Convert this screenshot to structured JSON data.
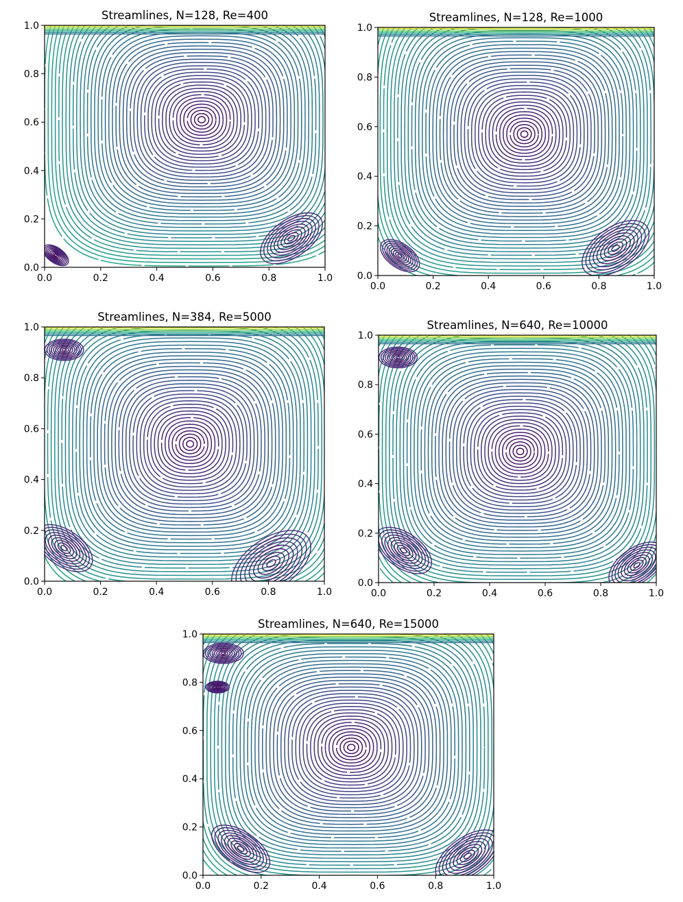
{
  "chart_data": [
    {
      "type": "streamplot",
      "title": "Streamlines, N=128, Re=400",
      "xlim": [
        0.0,
        1.0
      ],
      "ylim": [
        0.0,
        1.0
      ],
      "xticks": [
        "0.0",
        "0.2",
        "0.4",
        "0.6",
        "0.8",
        "1.0"
      ],
      "yticks": [
        "0.0",
        "0.2",
        "0.4",
        "0.6",
        "0.8",
        "1.0"
      ],
      "colormap": "viridis",
      "vortices": [
        {
          "role": "primary",
          "x": 0.56,
          "y": 0.61,
          "r": 0.5
        },
        {
          "role": "bottom-right",
          "x": 0.88,
          "y": 0.12,
          "r": 0.11
        },
        {
          "role": "bottom-left",
          "x": 0.04,
          "y": 0.05,
          "r": 0.045
        }
      ]
    },
    {
      "type": "streamplot",
      "title": "Streamlines, N=128, Re=1000",
      "xlim": [
        0.0,
        1.0
      ],
      "ylim": [
        0.0,
        1.0
      ],
      "xticks": [
        "0.0",
        "0.2",
        "0.4",
        "0.6",
        "0.8",
        "1.0"
      ],
      "yticks": [
        "0.0",
        "0.2",
        "0.4",
        "0.6",
        "0.8",
        "1.0"
      ],
      "colormap": "viridis",
      "vortices": [
        {
          "role": "primary",
          "x": 0.53,
          "y": 0.57,
          "r": 0.5
        },
        {
          "role": "bottom-right",
          "x": 0.86,
          "y": 0.11,
          "r": 0.12
        },
        {
          "role": "bottom-left",
          "x": 0.08,
          "y": 0.08,
          "r": 0.07
        }
      ]
    },
    {
      "type": "streamplot",
      "title": "Streamlines, N=384, Re=5000",
      "xlim": [
        0.0,
        1.0
      ],
      "ylim": [
        0.0,
        1.0
      ],
      "xticks": [
        "0.0",
        "0.2",
        "0.4",
        "0.6",
        "0.8",
        "1.0"
      ],
      "yticks": [
        "0.0",
        "0.2",
        "0.4",
        "0.6",
        "0.8",
        "1.0"
      ],
      "colormap": "viridis",
      "vortices": [
        {
          "role": "primary",
          "x": 0.52,
          "y": 0.54,
          "r": 0.5
        },
        {
          "role": "bottom-right",
          "x": 0.81,
          "y": 0.07,
          "r": 0.14
        },
        {
          "role": "bottom-left",
          "x": 0.07,
          "y": 0.13,
          "r": 0.1
        },
        {
          "role": "top-left",
          "x": 0.07,
          "y": 0.91,
          "r": 0.06
        }
      ]
    },
    {
      "type": "streamplot",
      "title": "Streamlines, N=640, Re=10000",
      "xlim": [
        0.0,
        1.0
      ],
      "ylim": [
        0.0,
        1.0
      ],
      "xticks": [
        "0.0",
        "0.2",
        "0.4",
        "0.6",
        "0.8",
        "1.0"
      ],
      "yticks": [
        "0.0",
        "0.2",
        "0.4",
        "0.6",
        "0.8",
        "1.0"
      ],
      "colormap": "viridis",
      "vortices": [
        {
          "role": "primary",
          "x": 0.51,
          "y": 0.53,
          "r": 0.5
        },
        {
          "role": "bottom-right",
          "x": 0.93,
          "y": 0.07,
          "r": 0.1
        },
        {
          "role": "bottom-left",
          "x": 0.09,
          "y": 0.13,
          "r": 0.1
        },
        {
          "role": "top-left",
          "x": 0.07,
          "y": 0.91,
          "r": 0.06
        }
      ]
    },
    {
      "type": "streamplot",
      "title": "Streamlines, N=640, Re=15000",
      "xlim": [
        0.0,
        1.0
      ],
      "ylim": [
        0.0,
        1.0
      ],
      "xticks": [
        "0.0",
        "0.2",
        "0.4",
        "0.6",
        "0.8",
        "1.0"
      ],
      "yticks": [
        "0.0",
        "0.2",
        "0.4",
        "0.6",
        "0.8",
        "1.0"
      ],
      "colormap": "viridis",
      "vortices": [
        {
          "role": "primary",
          "x": 0.51,
          "y": 0.53,
          "r": 0.5
        },
        {
          "role": "bottom-right",
          "x": 0.91,
          "y": 0.08,
          "r": 0.11
        },
        {
          "role": "bottom-left",
          "x": 0.13,
          "y": 0.11,
          "r": 0.1
        },
        {
          "role": "top-left",
          "x": 0.07,
          "y": 0.92,
          "r": 0.06
        },
        {
          "role": "left-wall",
          "x": 0.05,
          "y": 0.78,
          "r": 0.035
        }
      ]
    }
  ]
}
